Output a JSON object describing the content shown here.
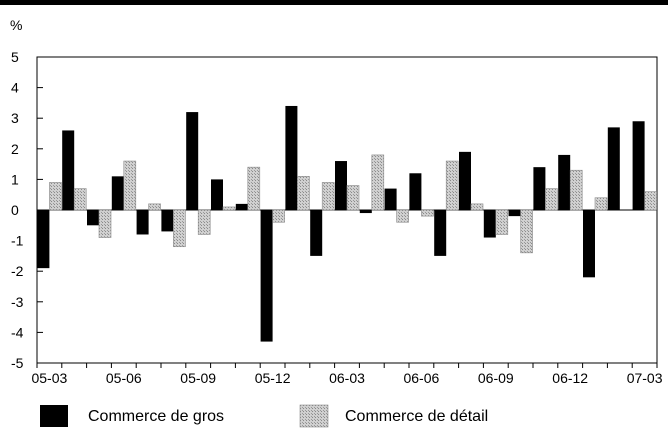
{
  "chart_data": {
    "type": "bar",
    "unit_label": "%",
    "ylim": [
      -5,
      5
    ],
    "yticks": [
      "5",
      "4",
      "3",
      "2",
      "1",
      "0",
      "-1",
      "-2",
      "-3",
      "-4",
      "-5"
    ],
    "x_tick_labels": [
      "05-03",
      "05-06",
      "05-09",
      "05-12",
      "06-03",
      "06-06",
      "06-09",
      "06-12",
      "07-03"
    ],
    "categories": [
      "05-03",
      "05-04",
      "05-05",
      "05-06",
      "05-07",
      "05-08",
      "05-09",
      "05-10",
      "05-11",
      "05-12",
      "06-01",
      "06-02",
      "06-03",
      "06-04",
      "06-05",
      "06-06",
      "06-07",
      "06-08",
      "06-09",
      "06-10",
      "06-11",
      "06-12",
      "07-01",
      "07-02",
      "07-03"
    ],
    "series": [
      {
        "name": "Commerce de gros",
        "values": [
          -1.9,
          2.6,
          -0.5,
          1.1,
          -0.8,
          -0.7,
          3.2,
          1.0,
          0.2,
          -4.3,
          3.4,
          -1.5,
          1.6,
          -0.1,
          0.7,
          1.2,
          -1.5,
          1.9,
          -0.9,
          -0.2,
          1.4,
          1.8,
          -2.2,
          2.7,
          2.9
        ]
      },
      {
        "name": "Commerce de détail",
        "values": [
          0.9,
          0.7,
          -0.9,
          1.6,
          0.2,
          -1.2,
          -0.8,
          0.1,
          1.4,
          -0.4,
          1.1,
          0.9,
          0.8,
          1.8,
          -0.4,
          -0.2,
          1.6,
          0.2,
          -0.8,
          -1.4,
          0.7,
          1.3,
          0.4,
          0.0,
          0.6
        ]
      }
    ],
    "colors": {
      "gros": "#000000",
      "detail": "#d0d0d0",
      "pattern_dot": "#8a8a8a"
    },
    "legend_position": "bottom",
    "grid": false
  }
}
